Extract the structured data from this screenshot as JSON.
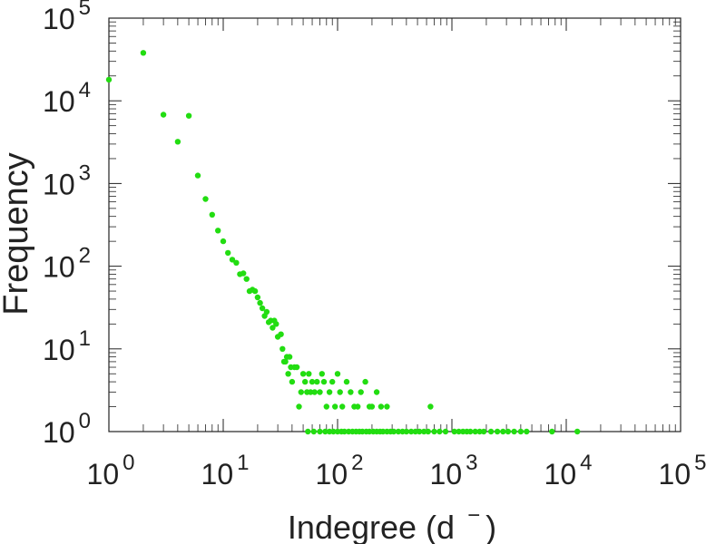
{
  "chart_data": {
    "type": "scatter",
    "xlabel": "Indegree (d",
    "xlabel_super": "−",
    "xlabel_close": ")",
    "ylabel": "Frequency",
    "x_scale": "log",
    "y_scale": "log",
    "xlim": [
      1,
      100000
    ],
    "ylim": [
      1,
      100000
    ],
    "x_ticks": [
      {
        "base": "10",
        "exp": "0"
      },
      {
        "base": "10",
        "exp": "1"
      },
      {
        "base": "10",
        "exp": "2"
      },
      {
        "base": "10",
        "exp": "3"
      },
      {
        "base": "10",
        "exp": "4"
      },
      {
        "base": "10",
        "exp": "5"
      }
    ],
    "y_ticks": [
      {
        "base": "10",
        "exp": "0"
      },
      {
        "base": "10",
        "exp": "1"
      },
      {
        "base": "10",
        "exp": "2"
      },
      {
        "base": "10",
        "exp": "3"
      },
      {
        "base": "10",
        "exp": "4"
      },
      {
        "base": "10",
        "exp": "5"
      }
    ],
    "grid": false,
    "marker_color": "#22dd11",
    "points": [
      [
        1,
        18000
      ],
      [
        2,
        38000
      ],
      [
        3,
        6800
      ],
      [
        4,
        3200
      ],
      [
        5,
        6600
      ],
      [
        6,
        1250
      ],
      [
        7,
        650
      ],
      [
        8,
        420
      ],
      [
        9,
        270
      ],
      [
        10,
        200
      ],
      [
        11,
        145
      ],
      [
        12,
        120
      ],
      [
        13,
        110
      ],
      [
        14,
        80
      ],
      [
        15,
        82
      ],
      [
        16,
        70
      ],
      [
        17,
        50
      ],
      [
        18,
        52
      ],
      [
        19,
        50
      ],
      [
        20,
        42
      ],
      [
        21,
        36
      ],
      [
        22,
        31
      ],
      [
        23,
        25
      ],
      [
        24,
        28
      ],
      [
        25,
        21
      ],
      [
        26,
        22
      ],
      [
        27,
        18
      ],
      [
        28,
        22
      ],
      [
        29,
        20
      ],
      [
        30,
        14
      ],
      [
        32,
        15
      ],
      [
        33,
        10
      ],
      [
        34,
        7
      ],
      [
        35,
        7
      ],
      [
        36,
        8
      ],
      [
        37,
        5
      ],
      [
        38,
        8
      ],
      [
        39,
        6
      ],
      [
        40,
        4
      ],
      [
        42,
        6
      ],
      [
        44,
        6
      ],
      [
        46,
        2
      ],
      [
        48,
        3
      ],
      [
        50,
        5
      ],
      [
        52,
        4
      ],
      [
        54,
        3
      ],
      [
        56,
        5
      ],
      [
        58,
        3
      ],
      [
        60,
        4
      ],
      [
        63,
        3
      ],
      [
        66,
        4
      ],
      [
        70,
        3
      ],
      [
        73,
        5
      ],
      [
        76,
        4
      ],
      [
        80,
        2
      ],
      [
        85,
        3
      ],
      [
        90,
        4
      ],
      [
        95,
        2
      ],
      [
        100,
        5
      ],
      [
        105,
        3
      ],
      [
        110,
        2
      ],
      [
        120,
        4
      ],
      [
        130,
        3
      ],
      [
        140,
        2
      ],
      [
        150,
        2
      ],
      [
        160,
        3
      ],
      [
        175,
        4
      ],
      [
        190,
        2
      ],
      [
        200,
        2
      ],
      [
        220,
        3
      ],
      [
        240,
        2
      ],
      [
        270,
        2
      ],
      [
        650,
        2
      ],
      [
        55,
        1
      ],
      [
        62,
        1
      ],
      [
        70,
        1
      ],
      [
        78,
        1
      ],
      [
        85,
        1
      ],
      [
        92,
        1
      ],
      [
        100,
        1
      ],
      [
        108,
        1
      ],
      [
        115,
        1
      ],
      [
        125,
        1
      ],
      [
        135,
        1
      ],
      [
        145,
        1
      ],
      [
        155,
        1
      ],
      [
        165,
        1
      ],
      [
        178,
        1
      ],
      [
        190,
        1
      ],
      [
        205,
        1
      ],
      [
        220,
        1
      ],
      [
        235,
        1
      ],
      [
        250,
        1
      ],
      [
        270,
        1
      ],
      [
        290,
        1
      ],
      [
        310,
        1
      ],
      [
        340,
        1
      ],
      [
        370,
        1
      ],
      [
        400,
        1
      ],
      [
        440,
        1
      ],
      [
        480,
        1
      ],
      [
        520,
        1
      ],
      [
        570,
        1
      ],
      [
        620,
        1
      ],
      [
        700,
        1
      ],
      [
        780,
        1
      ],
      [
        880,
        1
      ],
      [
        1050,
        1
      ],
      [
        1150,
        1
      ],
      [
        1250,
        1
      ],
      [
        1350,
        1
      ],
      [
        1450,
        1
      ],
      [
        1600,
        1
      ],
      [
        1750,
        1
      ],
      [
        1900,
        1
      ],
      [
        2200,
        1
      ],
      [
        2500,
        1
      ],
      [
        2800,
        1
      ],
      [
        3100,
        1
      ],
      [
        3500,
        1
      ],
      [
        4000,
        1
      ],
      [
        4500,
        1
      ],
      [
        7500,
        1
      ],
      [
        12500,
        1
      ]
    ]
  }
}
